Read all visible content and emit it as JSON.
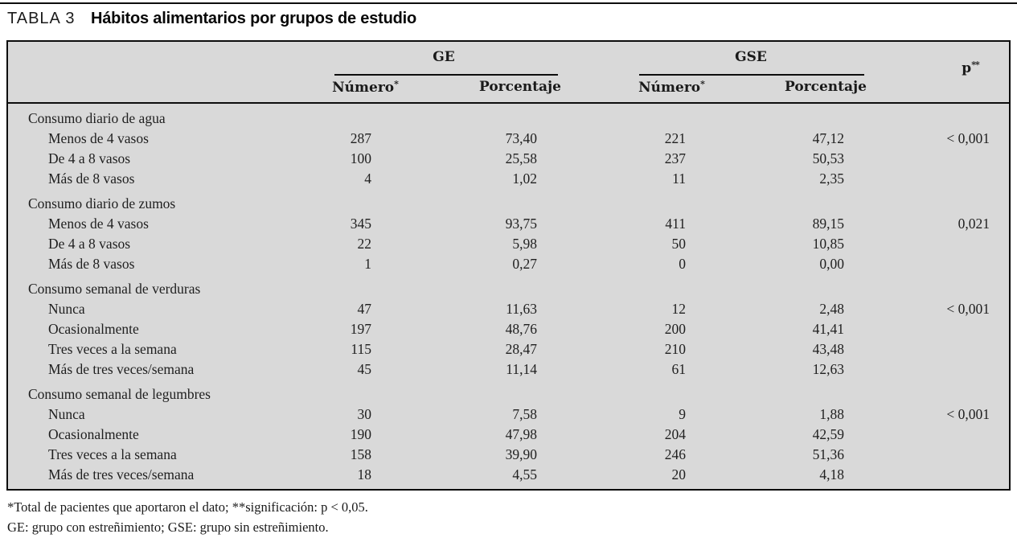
{
  "title": {
    "label": "TABLA 3",
    "text": "Hábitos alimentarios por grupos de estudio"
  },
  "table": {
    "groups": [
      {
        "label": "GE"
      },
      {
        "label": "GSE"
      }
    ],
    "subheaders": {
      "numero": "Número",
      "numero_sup": "*",
      "porcentaje": "Porcentaje"
    },
    "p_header": {
      "label": "p",
      "sup": "**"
    },
    "sections": [
      {
        "label": "Consumo diario de agua",
        "rows": [
          {
            "label": "Menos de 4 vasos",
            "ge_numero": "287",
            "ge_porcentaje": "73,40",
            "gse_numero": "221",
            "gse_porcentaje": "47,12",
            "p": "< 0,001"
          },
          {
            "label": "De 4 a 8 vasos",
            "ge_numero": "100",
            "ge_porcentaje": "25,58",
            "gse_numero": "237",
            "gse_porcentaje": "50,53",
            "p": ""
          },
          {
            "label": "Más de 8 vasos",
            "ge_numero": "4",
            "ge_porcentaje": "1,02",
            "gse_numero": "11",
            "gse_porcentaje": "2,35",
            "p": ""
          }
        ]
      },
      {
        "label": "Consumo diario de zumos",
        "rows": [
          {
            "label": "Menos de 4 vasos",
            "ge_numero": "345",
            "ge_porcentaje": "93,75",
            "gse_numero": "411",
            "gse_porcentaje": "89,15",
            "p": "0,021"
          },
          {
            "label": "De 4 a 8 vasos",
            "ge_numero": "22",
            "ge_porcentaje": "5,98",
            "gse_numero": "50",
            "gse_porcentaje": "10,85",
            "p": ""
          },
          {
            "label": "Más de 8 vasos",
            "ge_numero": "1",
            "ge_porcentaje": "0,27",
            "gse_numero": "0",
            "gse_porcentaje": "0,00",
            "p": ""
          }
        ]
      },
      {
        "label": "Consumo semanal de verduras",
        "rows": [
          {
            "label": "Nunca",
            "ge_numero": "47",
            "ge_porcentaje": "11,63",
            "gse_numero": "12",
            "gse_porcentaje": "2,48",
            "p": "< 0,001"
          },
          {
            "label": "Ocasionalmente",
            "ge_numero": "197",
            "ge_porcentaje": "48,76",
            "gse_numero": "200",
            "gse_porcentaje": "41,41",
            "p": ""
          },
          {
            "label": "Tres veces a la semana",
            "ge_numero": "115",
            "ge_porcentaje": "28,47",
            "gse_numero": "210",
            "gse_porcentaje": "43,48",
            "p": ""
          },
          {
            "label": "Más de tres veces/semana",
            "ge_numero": "45",
            "ge_porcentaje": "11,14",
            "gse_numero": "61",
            "gse_porcentaje": "12,63",
            "p": ""
          }
        ]
      },
      {
        "label": "Consumo semanal de legumbres",
        "rows": [
          {
            "label": "Nunca",
            "ge_numero": "30",
            "ge_porcentaje": "7,58",
            "gse_numero": "9",
            "gse_porcentaje": "1,88",
            "p": "< 0,001"
          },
          {
            "label": "Ocasionalmente",
            "ge_numero": "190",
            "ge_porcentaje": "47,98",
            "gse_numero": "204",
            "gse_porcentaje": "42,59",
            "p": ""
          },
          {
            "label": "Tres veces a la semana",
            "ge_numero": "158",
            "ge_porcentaje": "39,90",
            "gse_numero": "246",
            "gse_porcentaje": "51,36",
            "p": ""
          },
          {
            "label": "Más de tres veces/semana",
            "ge_numero": "18",
            "ge_porcentaje": "4,55",
            "gse_numero": "20",
            "gse_porcentaje": "4,18",
            "p": ""
          }
        ]
      }
    ]
  },
  "footnotes": [
    "*Total de pacientes que aportaron el dato; **significación: p < 0,05.",
    "GE: grupo con estreñimiento; GSE: grupo sin estreñimiento."
  ],
  "colors": {
    "table_background": "#d9d9d9",
    "rule": "#000000",
    "text": "#1a1a1a"
  }
}
